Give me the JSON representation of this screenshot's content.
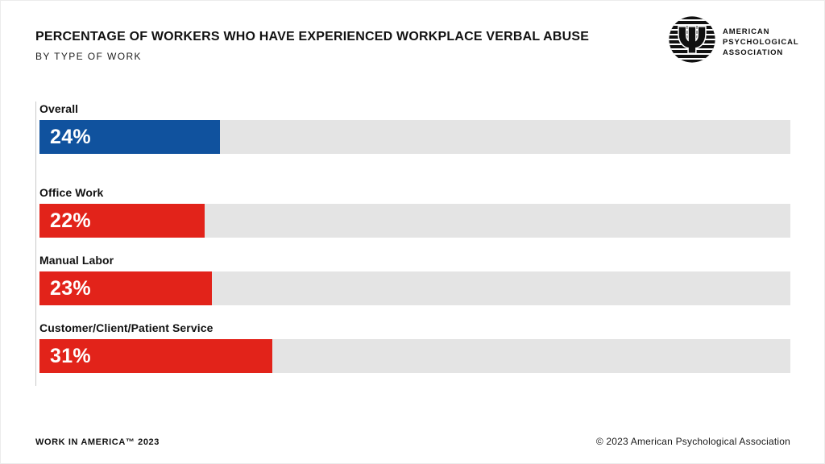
{
  "header": {
    "title": "PERCENTAGE OF WORKERS WHO HAVE EXPERIENCED WORKPLACE VERBAL ABUSE",
    "subtitle": "BY TYPE OF WORK"
  },
  "logo": {
    "psi_glyph": "Ψ",
    "lines": [
      "AMERICAN",
      "PSYCHOLOGICAL",
      "ASSOCIATION"
    ]
  },
  "chart_data": {
    "type": "bar",
    "orientation": "horizontal",
    "title": "PERCENTAGE OF WORKERS WHO HAVE EXPERIENCED WORKPLACE VERBAL ABUSE",
    "subtitle": "BY TYPE OF WORK",
    "categories": [
      "Overall",
      "Office Work",
      "Manual Labor",
      "Customer/Client/Patient Service"
    ],
    "values": [
      24,
      22,
      23,
      31
    ],
    "value_labels": [
      "24%",
      "22%",
      "23%",
      "31%"
    ],
    "bar_colors": [
      "#10529e",
      "#e2231a",
      "#e2231a",
      "#e2231a"
    ],
    "track_color": "#e4e4e4",
    "xlim": [
      0,
      100
    ],
    "grid": false,
    "legend": false
  },
  "footer": {
    "left": "WORK IN AMERICA™ 2023",
    "right": "© 2023 American Psychological Association"
  },
  "colors": {
    "blue": "#10529e",
    "red": "#e2231a",
    "track": "#e4e4e4",
    "axis_line": "#c9c9c9"
  }
}
